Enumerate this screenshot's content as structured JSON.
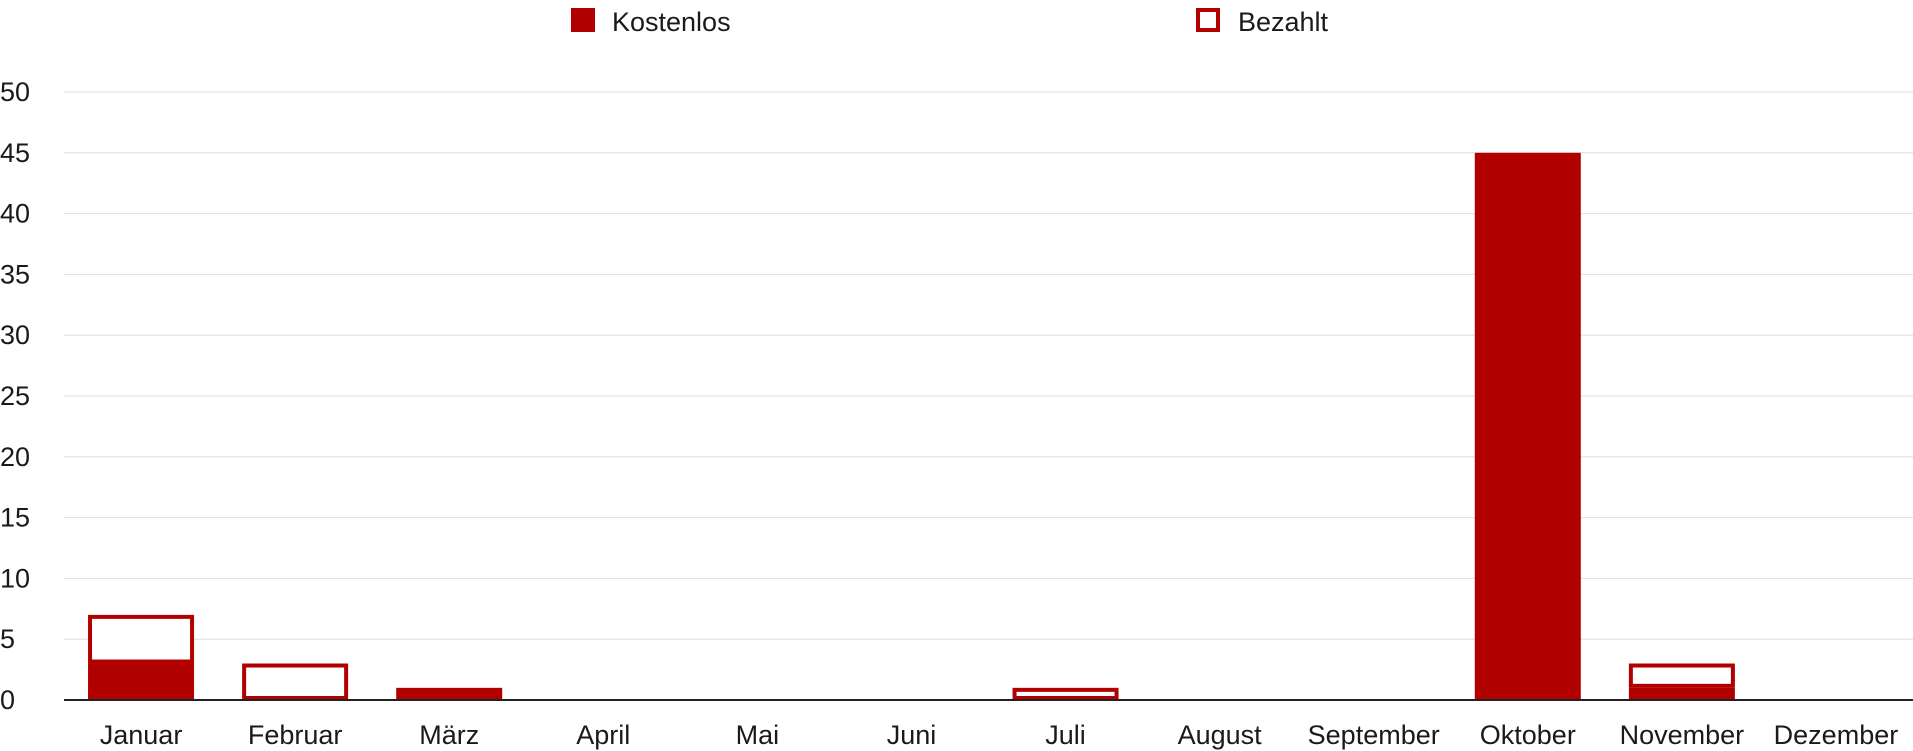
{
  "chart_data": {
    "type": "bar",
    "stacked": true,
    "title": "",
    "xlabel": "",
    "ylabel": "",
    "ylim": [
      0,
      50
    ],
    "yticks": [
      0,
      5,
      10,
      15,
      20,
      25,
      30,
      35,
      40,
      45,
      50
    ],
    "grid": true,
    "legend_position": "top",
    "categories": [
      "Januar",
      "Februar",
      "März",
      "April",
      "Mai",
      "Juni",
      "Juli",
      "August",
      "September",
      "Oktober",
      "November",
      "Dezember"
    ],
    "series": [
      {
        "name": "Kostenlos",
        "style": "filled",
        "color": "#b00000",
        "values": [
          3,
          0,
          1,
          0,
          0,
          0,
          0,
          0,
          0,
          45,
          1,
          0
        ]
      },
      {
        "name": "Bezahlt",
        "style": "outline",
        "color": "#b00000",
        "values": [
          4,
          3,
          0,
          0,
          0,
          0,
          1,
          0,
          0,
          0,
          2,
          0
        ]
      }
    ]
  }
}
